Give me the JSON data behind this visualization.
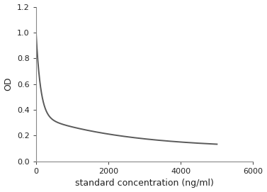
{
  "title": "",
  "xlabel": "standard concentration (ng/ml)",
  "ylabel": "OD",
  "xlim": [
    0,
    6000
  ],
  "ylim": [
    0,
    1.2
  ],
  "xticks": [
    0,
    2000,
    4000,
    6000
  ],
  "yticks": [
    0,
    0.2,
    0.4,
    0.6,
    0.8,
    1.0,
    1.2
  ],
  "line_color": "#5a5a5a",
  "line_width": 1.4,
  "curve_params": {
    "A": 0.1,
    "B1": 0.65,
    "k1": 0.008,
    "B2": 0.25,
    "k2": 0.0004
  },
  "background_color": "#ffffff",
  "axes_background": "#ffffff",
  "font_size_labels": 9,
  "font_size_ticks": 8
}
